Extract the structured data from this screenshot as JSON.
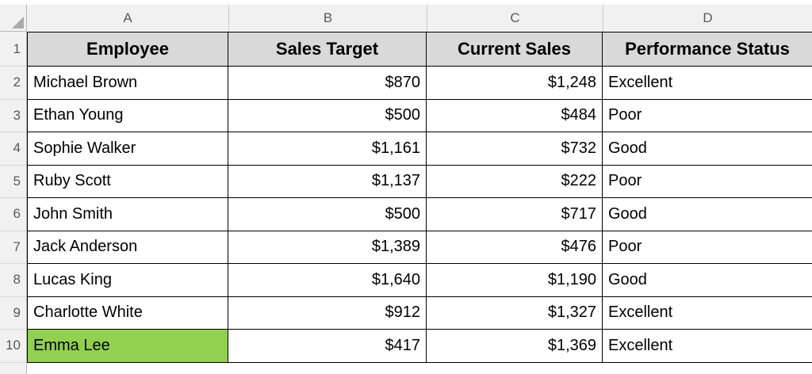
{
  "columns": {
    "letters": [
      "A",
      "B",
      "C",
      "D"
    ]
  },
  "header_row": {
    "number": "1",
    "cells": [
      "Employee",
      "Sales Target",
      "Current Sales",
      "Performance Status"
    ]
  },
  "rows": [
    {
      "number": "2",
      "employee": "Michael Brown",
      "sales_target": "$870",
      "current_sales": "$1,248",
      "status": "Excellent",
      "highlight": false
    },
    {
      "number": "3",
      "employee": "Ethan Young",
      "sales_target": "$500",
      "current_sales": "$484",
      "status": "Poor",
      "highlight": false
    },
    {
      "number": "4",
      "employee": "Sophie Walker",
      "sales_target": "$1,161",
      "current_sales": "$732",
      "status": "Good",
      "highlight": false
    },
    {
      "number": "5",
      "employee": "Ruby Scott",
      "sales_target": "$1,137",
      "current_sales": "$222",
      "status": "Poor",
      "highlight": false
    },
    {
      "number": "6",
      "employee": "John Smith",
      "sales_target": "$500",
      "current_sales": "$717",
      "status": "Good",
      "highlight": false
    },
    {
      "number": "7",
      "employee": "Jack Anderson",
      "sales_target": "$1,389",
      "current_sales": "$476",
      "status": "Poor",
      "highlight": false
    },
    {
      "number": "8",
      "employee": "Lucas King",
      "sales_target": "$1,640",
      "current_sales": "$1,190",
      "status": "Good",
      "highlight": false
    },
    {
      "number": "9",
      "employee": "Charlotte White",
      "sales_target": "$912",
      "current_sales": "$1,327",
      "status": "Excellent",
      "highlight": false
    },
    {
      "number": "10",
      "employee": "Emma Lee",
      "sales_target": "$417",
      "current_sales": "$1,369",
      "status": "Excellent",
      "highlight": true
    }
  ],
  "colors": {
    "highlight_green": "#92D050",
    "header_fill": "#D9D9D9",
    "strip_fill": "#F1F1F1",
    "strip_text": "#595959",
    "grid_border": "#000000"
  }
}
